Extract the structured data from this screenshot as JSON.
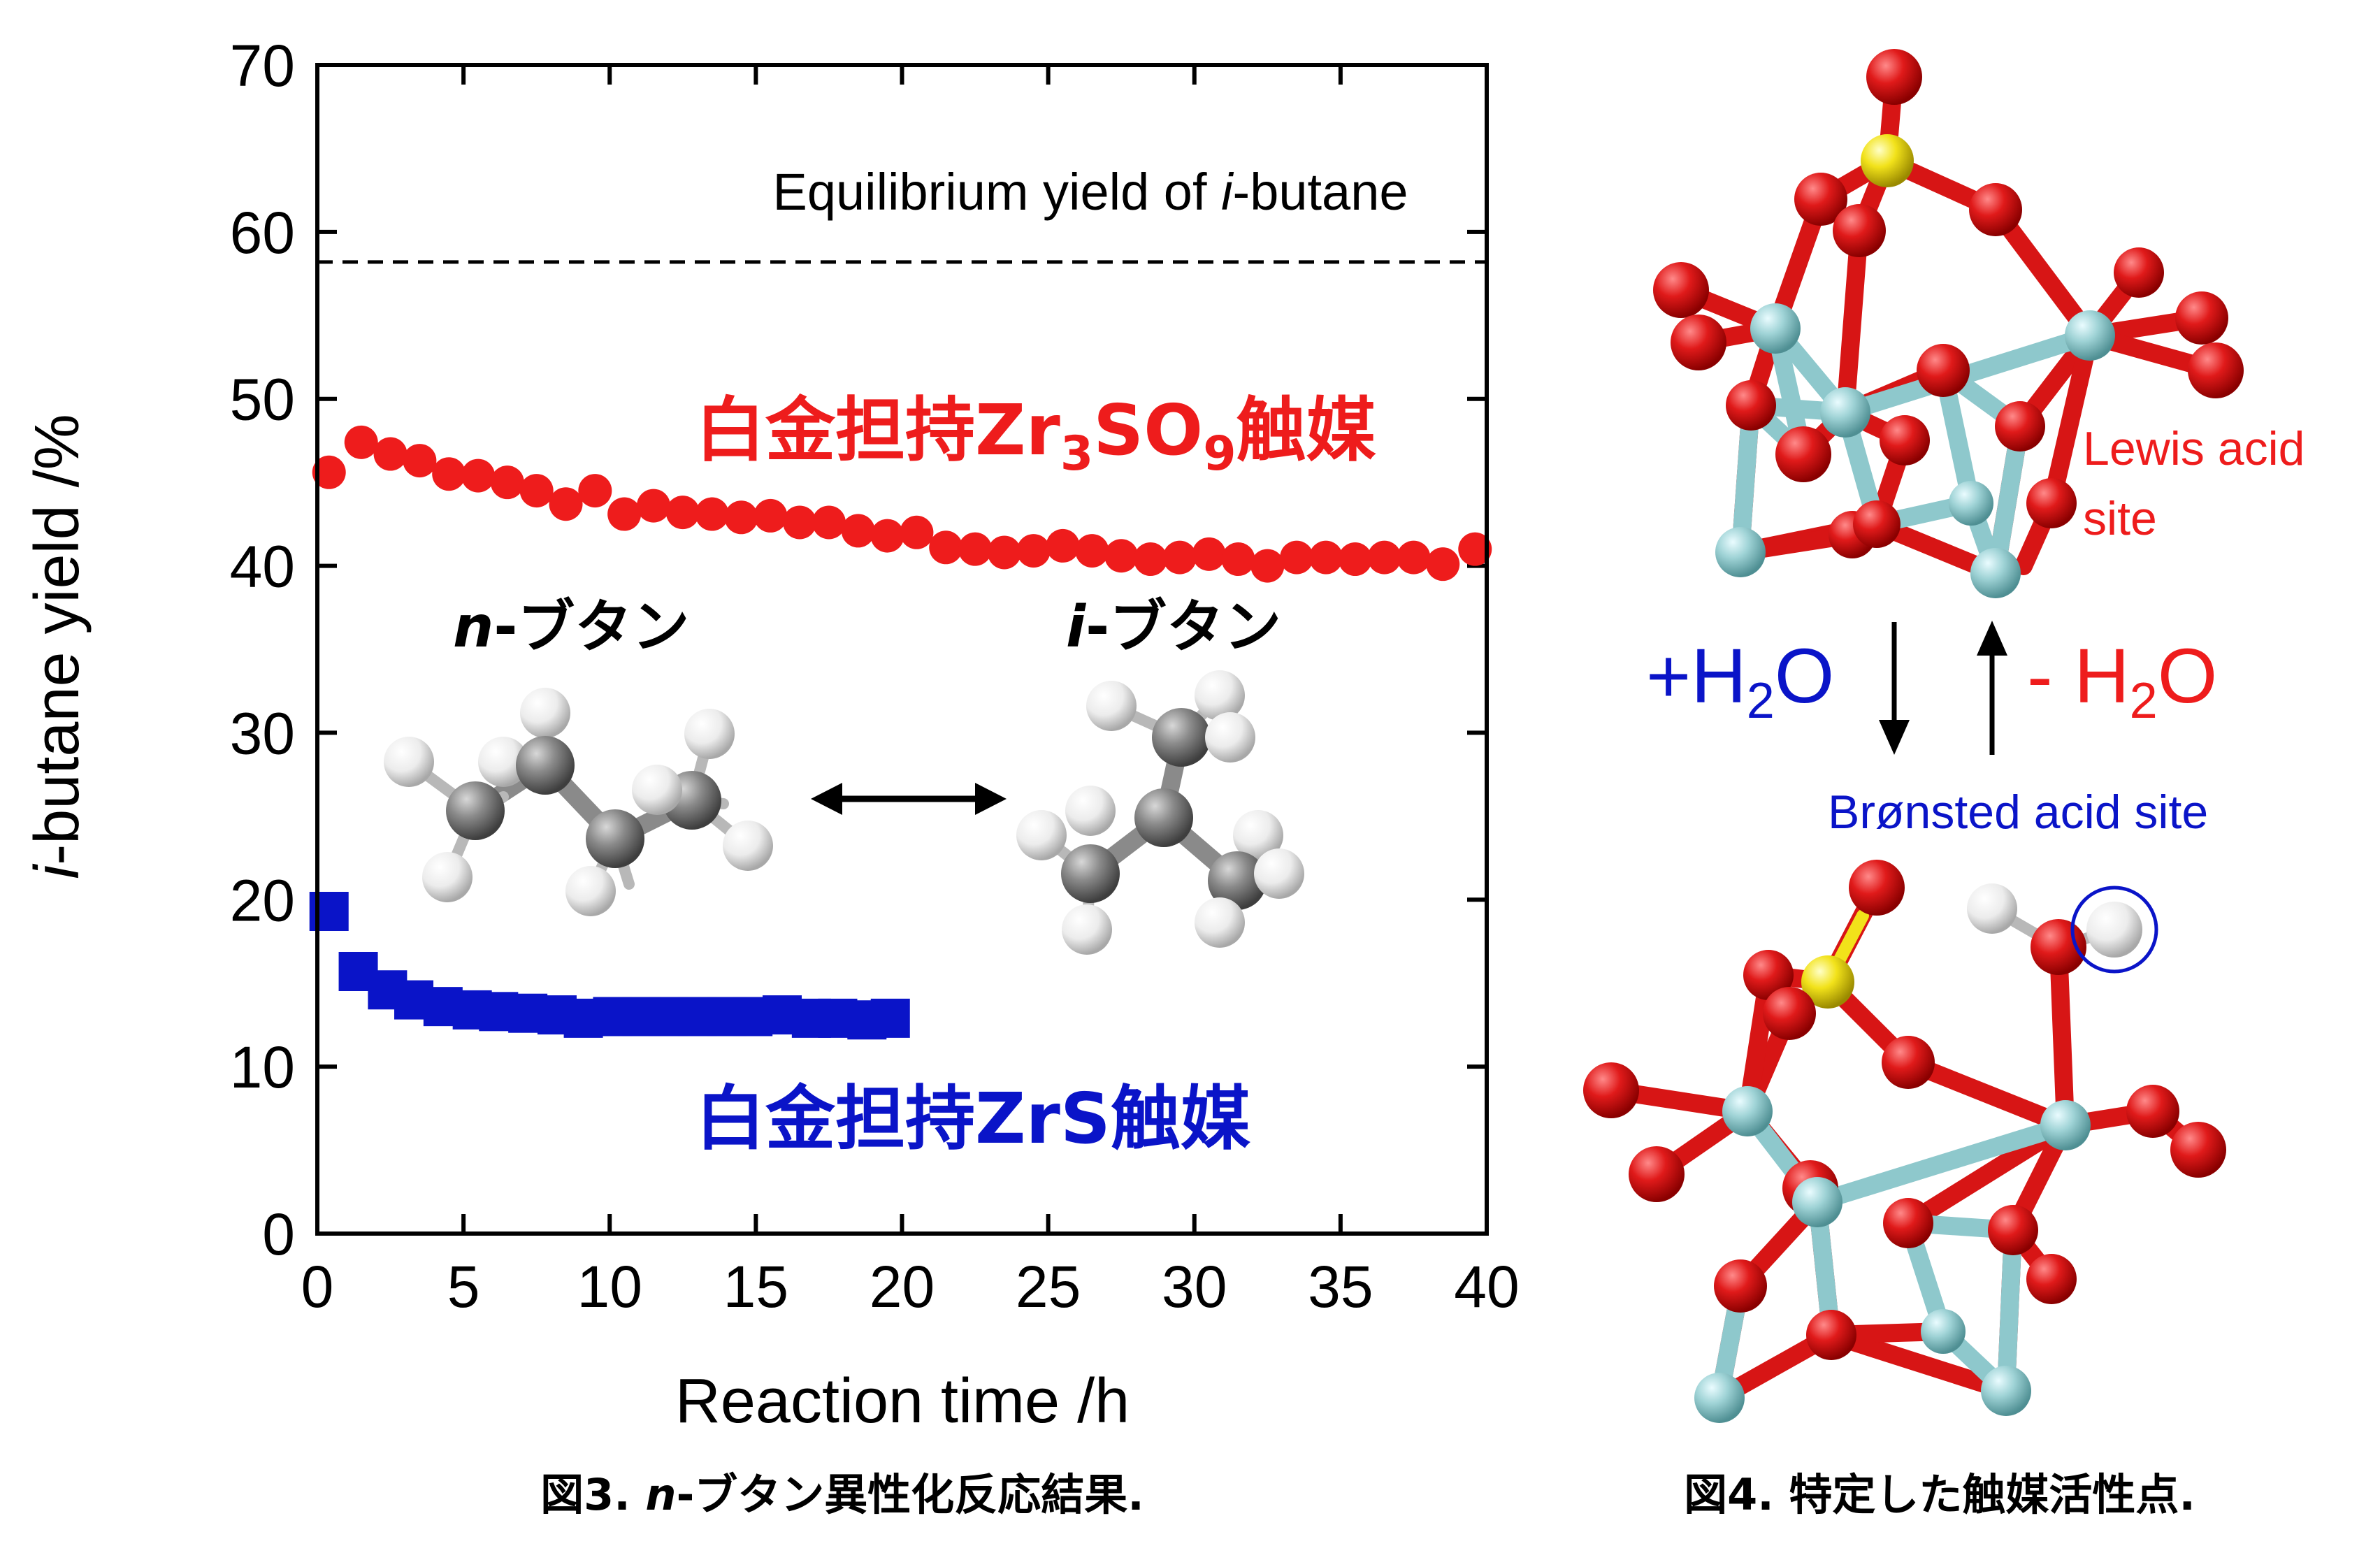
{
  "chart_data": {
    "type": "scatter",
    "title": "",
    "xlabel": "Reaction time /h",
    "ylabel_prefix": "i",
    "ylabel_rest": "-butane yield /%",
    "xlim": [
      0,
      40
    ],
    "ylim": [
      0,
      70
    ],
    "xticks": [
      "0",
      "5",
      "10",
      "15",
      "20",
      "25",
      "30",
      "35",
      "40"
    ],
    "yticks": [
      "0",
      "10",
      "20",
      "30",
      "40",
      "50",
      "60",
      "70"
    ],
    "equilibrium": {
      "value": 58.2,
      "label_pre": "Equilibrium yield of ",
      "label_ital": "i",
      "label_post": "-butane"
    },
    "series": [
      {
        "name_main": "白金担持Zr",
        "name_sub1": "3",
        "name_mid": "SO",
        "name_sub2": "9",
        "name_end": "触媒",
        "color": "#ee1c1c",
        "marker": "circle",
        "x": [
          0.4,
          1.5,
          2.5,
          3.5,
          4.5,
          5.5,
          6.5,
          7.5,
          8.5,
          9.5,
          10.5,
          11.5,
          12.5,
          13.5,
          14.5,
          15.5,
          16.5,
          17.5,
          18.5,
          19.5,
          20.5,
          21.5,
          22.5,
          23.5,
          24.5,
          25.5,
          26.5,
          27.5,
          28.5,
          29.5,
          30.5,
          31.5,
          32.5,
          33.5,
          34.5,
          35.5,
          36.5,
          37.5,
          38.5,
          39.6
        ],
        "y": [
          45.6,
          47.4,
          46.7,
          46.3,
          45.5,
          45.4,
          45.0,
          44.5,
          43.7,
          44.5,
          43.1,
          43.6,
          43.2,
          43.1,
          42.9,
          43.0,
          42.6,
          42.6,
          42.1,
          41.8,
          42.0,
          41.1,
          41.0,
          40.8,
          40.9,
          41.2,
          40.9,
          40.6,
          40.4,
          40.5,
          40.7,
          40.4,
          40.0,
          40.5,
          40.5,
          40.4,
          40.5,
          40.5,
          40.1,
          41.0
        ]
      },
      {
        "name_main": "白金担持ZrS触媒",
        "color": "#0a14c8",
        "marker": "square",
        "x": [
          0.4,
          1.4,
          2.4,
          3.3,
          4.3,
          5.3,
          6.2,
          7.2,
          8.2,
          9.1,
          10.1,
          11.1,
          12.0,
          13.0,
          14.0,
          14.9,
          15.9,
          16.9,
          17.8,
          18.8,
          19.6
        ],
        "y": [
          19.3,
          15.7,
          14.6,
          14.0,
          13.6,
          13.4,
          13.3,
          13.2,
          13.1,
          12.9,
          13.0,
          13.0,
          13.0,
          13.0,
          13.0,
          13.0,
          13.1,
          12.9,
          12.9,
          12.8,
          12.9
        ]
      }
    ],
    "molecules": {
      "n_prefix": "n",
      "n_suffix": "-ブタン",
      "i_prefix": "i",
      "i_suffix": "-ブタン"
    }
  },
  "structure": {
    "lewis_line1": "Lewis acid",
    "lewis_line2": "site",
    "plus_water_a": "+H",
    "plus_water_sub": "2",
    "plus_water_b": "O",
    "minus_water_a": "- H",
    "minus_water_sub": "2",
    "minus_water_b": "O",
    "bronsted": "Brønsted acid site"
  },
  "captions": {
    "fig3_pre": "図3. ",
    "fig3_ital": "n",
    "fig3_post": "-ブタン異性化反応結果.",
    "fig4": "図4. 特定した触媒活性点."
  },
  "colors": {
    "red": "#ee1c1c",
    "blue": "#0a14c8",
    "oxygen": "#dd1111",
    "zirconium": "#8ec8cc",
    "sulfur": "#f2e21a",
    "carbon": "#8a8a8a",
    "hydrogen": "#f4f4f4"
  }
}
